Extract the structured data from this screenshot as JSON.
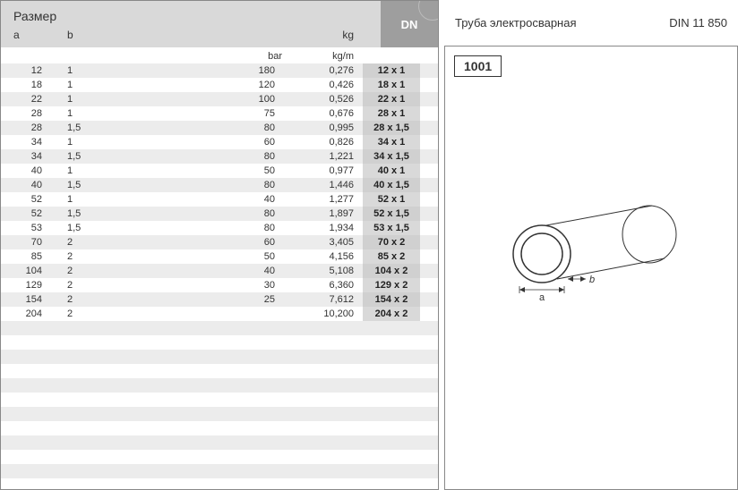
{
  "left": {
    "size_label": "Размер",
    "col_a": "a",
    "col_b": "b",
    "col_kg": "kg",
    "dn_label": "DN",
    "unit_bar": "bar",
    "unit_kgm": "kg/m",
    "rows": [
      {
        "a": "12",
        "b": "1",
        "bar": "180",
        "kg": "0,276",
        "dn": "12 x 1"
      },
      {
        "a": "18",
        "b": "1",
        "bar": "120",
        "kg": "0,426",
        "dn": "18 x 1"
      },
      {
        "a": "22",
        "b": "1",
        "bar": "100",
        "kg": "0,526",
        "dn": "22 x 1"
      },
      {
        "a": "28",
        "b": "1",
        "bar": "75",
        "kg": "0,676",
        "dn": "28 x 1"
      },
      {
        "a": "28",
        "b": "1,5",
        "bar": "80",
        "kg": "0,995",
        "dn": "28 x 1,5"
      },
      {
        "a": "34",
        "b": "1",
        "bar": "60",
        "kg": "0,826",
        "dn": "34 x 1"
      },
      {
        "a": "34",
        "b": "1,5",
        "bar": "80",
        "kg": "1,221",
        "dn": "34 x 1,5"
      },
      {
        "a": "40",
        "b": "1",
        "bar": "50",
        "kg": "0,977",
        "dn": "40 x 1"
      },
      {
        "a": "40",
        "b": "1,5",
        "bar": "80",
        "kg": "1,446",
        "dn": "40 x 1,5"
      },
      {
        "a": "52",
        "b": "1",
        "bar": "40",
        "kg": "1,277",
        "dn": "52 x 1"
      },
      {
        "a": "52",
        "b": "1,5",
        "bar": "80",
        "kg": "1,897",
        "dn": "52 x 1,5"
      },
      {
        "a": "53",
        "b": "1,5",
        "bar": "80",
        "kg": "1,934",
        "dn": "53 x 1,5"
      },
      {
        "a": "70",
        "b": "2",
        "bar": "60",
        "kg": "3,405",
        "dn": "70 x 2"
      },
      {
        "a": "85",
        "b": "2",
        "bar": "50",
        "kg": "4,156",
        "dn": "85 x 2"
      },
      {
        "a": "104",
        "b": "2",
        "bar": "40",
        "kg": "5,108",
        "dn": "104 x 2"
      },
      {
        "a": "129",
        "b": "2",
        "bar": "30",
        "kg": "6,360",
        "dn": "129 x 2"
      },
      {
        "a": "154",
        "b": "2",
        "bar": "25",
        "kg": "7,612",
        "dn": "154 x 2"
      },
      {
        "a": "204",
        "b": "2",
        "bar": "",
        "kg": "10,200",
        "dn": "204 x 2"
      }
    ],
    "empty_row_count": 11
  },
  "right": {
    "title": "Труба электросварная",
    "din": "DIN 11 850",
    "code": "1001",
    "dim_a": "a",
    "dim_b": "b"
  },
  "style": {
    "header_bg": "#d9d9d9",
    "dn_bg": "#9e9e9e",
    "stripe_bg": "#ececec",
    "border_color": "#888888",
    "text_color": "#333333"
  }
}
